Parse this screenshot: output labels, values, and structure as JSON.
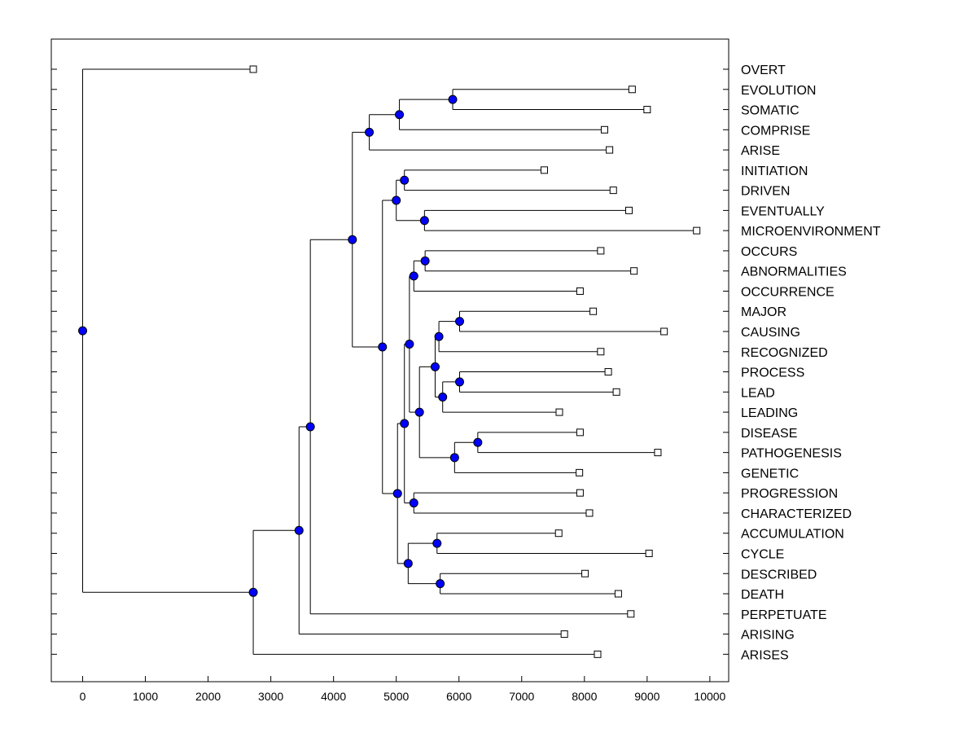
{
  "chart_data": {
    "type": "dendrogram",
    "title": "",
    "xlabel": "",
    "ylabel": "",
    "xlim": [
      -500,
      10300
    ],
    "xticks": [
      0,
      1000,
      2000,
      3000,
      4000,
      5000,
      6000,
      7000,
      8000,
      9000,
      10000
    ],
    "node_color": "#0000ff",
    "leaf_color": "#ffffff",
    "leaves": [
      {
        "label": "OVERT",
        "x": 2720
      },
      {
        "label": "EVOLUTION",
        "x": 8760
      },
      {
        "label": "SOMATIC",
        "x": 9000
      },
      {
        "label": "COMPRISE",
        "x": 8320
      },
      {
        "label": "ARISE",
        "x": 8400
      },
      {
        "label": "INITIATION",
        "x": 7360
      },
      {
        "label": "DRIVEN",
        "x": 8460
      },
      {
        "label": "EVENTUALLY",
        "x": 8710
      },
      {
        "label": "MICROENVIRONMENT",
        "x": 9790
      },
      {
        "label": "OCCURS",
        "x": 8260
      },
      {
        "label": "ABNORMALITIES",
        "x": 8790
      },
      {
        "label": "OCCURRENCE",
        "x": 7930
      },
      {
        "label": "MAJOR",
        "x": 8140
      },
      {
        "label": "CAUSING",
        "x": 9270
      },
      {
        "label": "RECOGNIZED",
        "x": 8260
      },
      {
        "label": "PROCESS",
        "x": 8380
      },
      {
        "label": "LEAD",
        "x": 8510
      },
      {
        "label": "LEADING",
        "x": 7600
      },
      {
        "label": "DISEASE",
        "x": 7930
      },
      {
        "label": "PATHOGENESIS",
        "x": 9170
      },
      {
        "label": "GENETIC",
        "x": 7920
      },
      {
        "label": "PROGRESSION",
        "x": 7930
      },
      {
        "label": "CHARACTERIZED",
        "x": 8080
      },
      {
        "label": "ACCUMULATION",
        "x": 7590
      },
      {
        "label": "CYCLE",
        "x": 9030
      },
      {
        "label": "DESCRIBED",
        "x": 8010
      },
      {
        "label": "DEATH",
        "x": 8540
      },
      {
        "label": "PERPETUATE",
        "x": 8740
      },
      {
        "label": "ARISING",
        "x": 7680
      },
      {
        "label": "ARISES",
        "x": 8210
      }
    ],
    "merges": [
      {
        "id": "n1",
        "x": 5900,
        "children": [
          "EVOLUTION",
          "SOMATIC"
        ]
      },
      {
        "id": "n2",
        "x": 5050,
        "children": [
          "n1",
          "COMPRISE"
        ]
      },
      {
        "id": "n3",
        "x": 4570,
        "children": [
          "n2",
          "ARISE"
        ]
      },
      {
        "id": "n4",
        "x": 5130,
        "children": [
          "INITIATION",
          "DRIVEN"
        ]
      },
      {
        "id": "n5",
        "x": 5450,
        "children": [
          "EVENTUALLY",
          "MICROENVIRONMENT"
        ]
      },
      {
        "id": "n6",
        "x": 5000,
        "children": [
          "n4",
          "n5"
        ]
      },
      {
        "id": "n7",
        "x": 5460,
        "children": [
          "OCCURS",
          "ABNORMALITIES"
        ]
      },
      {
        "id": "n8",
        "x": 5280,
        "children": [
          "n7",
          "OCCURRENCE"
        ]
      },
      {
        "id": "n9",
        "x": 6010,
        "children": [
          "MAJOR",
          "CAUSING"
        ]
      },
      {
        "id": "n10",
        "x": 5680,
        "children": [
          "n9",
          "RECOGNIZED"
        ]
      },
      {
        "id": "n11",
        "x": 6010,
        "children": [
          "PROCESS",
          "LEAD"
        ]
      },
      {
        "id": "n12",
        "x": 5740,
        "children": [
          "n11",
          "LEADING"
        ]
      },
      {
        "id": "n13",
        "x": 5620,
        "children": [
          "n10",
          "n12"
        ]
      },
      {
        "id": "n14",
        "x": 6300,
        "children": [
          "DISEASE",
          "PATHOGENESIS"
        ]
      },
      {
        "id": "n15",
        "x": 5930,
        "children": [
          "n14",
          "GENETIC"
        ]
      },
      {
        "id": "n16",
        "x": 5370,
        "children": [
          "n13",
          "n15"
        ]
      },
      {
        "id": "n17",
        "x": 5210,
        "children": [
          "n8",
          "n16"
        ]
      },
      {
        "id": "n18",
        "x": 5280,
        "children": [
          "PROGRESSION",
          "CHARACTERIZED"
        ]
      },
      {
        "id": "n19",
        "x": 5130,
        "children": [
          "n17",
          "n18"
        ]
      },
      {
        "id": "n20",
        "x": 5650,
        "children": [
          "ACCUMULATION",
          "CYCLE"
        ]
      },
      {
        "id": "n21",
        "x": 5700,
        "children": [
          "DESCRIBED",
          "DEATH"
        ]
      },
      {
        "id": "n22",
        "x": 5190,
        "children": [
          "n20",
          "n21"
        ]
      },
      {
        "id": "n23",
        "x": 5020,
        "children": [
          "n19",
          "n22"
        ]
      },
      {
        "id": "n24",
        "x": 4780,
        "children": [
          "n6",
          "n23"
        ]
      },
      {
        "id": "n25",
        "x": 4300,
        "children": [
          "n3",
          "n24"
        ]
      },
      {
        "id": "n26",
        "x": 3630,
        "children": [
          "n25",
          "PERPETUATE"
        ]
      },
      {
        "id": "n27",
        "x": 3450,
        "children": [
          "n26",
          "ARISING"
        ]
      },
      {
        "id": "n28",
        "x": 2720,
        "children": [
          "n27",
          "ARISES"
        ]
      },
      {
        "id": "n29",
        "x": 0,
        "children": [
          "OVERT",
          "n28"
        ]
      }
    ]
  }
}
